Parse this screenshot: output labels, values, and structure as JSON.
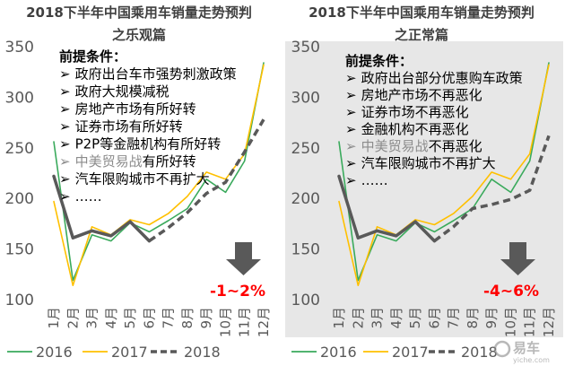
{
  "chart_data": [
    {
      "type": "line",
      "title": "2018下半年中国乘用车销量走势预判",
      "subtitle": "之乐观篇",
      "categories": [
        "1月",
        "2月",
        "3月",
        "4月",
        "5月",
        "6月",
        "7月",
        "8月",
        "9月",
        "10月",
        "11月",
        "12月"
      ],
      "ylim": [
        100,
        350
      ],
      "yticks": [
        100,
        150,
        200,
        250,
        300,
        350
      ],
      "grid": false,
      "legend": "bottom",
      "background": "#ffffff",
      "series": [
        {
          "name": "2016",
          "color": "#3aaa5c",
          "values": [
            256,
            119,
            164,
            158,
            176,
            167,
            178,
            190,
            219,
            206,
            237,
            334
          ]
        },
        {
          "name": "2017",
          "color": "#ffc000",
          "values": [
            197,
            114,
            172,
            164,
            179,
            174,
            185,
            202,
            226,
            219,
            244,
            332
          ]
        },
        {
          "name": "2018",
          "color": "#595959",
          "dashed_from": "6月",
          "values": [
            222,
            161,
            168,
            163,
            177,
            158,
            171,
            186,
            205,
            216,
            246,
            278
          ]
        }
      ],
      "annotation": {
        "heading": "前提条件：",
        "bullet": "➢",
        "muted_phrase": "中美贸易战",
        "items": [
          "政府出台车市强势刺激政策",
          "政府大规模减税",
          "房地产市场有所好转",
          "证券市场有所好转",
          "P2P等金融机构有所好转",
          "中美贸易战有所好转",
          "汽车限购城市不再扩大",
          "……"
        ]
      },
      "forecast_change": "-1~2%",
      "forecast_change_color": "#ff0000",
      "arrow_icon": "down-arrow-icon",
      "arrow_color": "#595959"
    },
    {
      "type": "line",
      "title": "2018下半年中国乘用车销量走势预判",
      "subtitle": "之正常篇",
      "categories": [
        "1月",
        "2月",
        "3月",
        "4月",
        "5月",
        "6月",
        "7月",
        "8月",
        "9月",
        "10月",
        "11月",
        "12月"
      ],
      "ylim": [
        100,
        350
      ],
      "yticks": [
        100,
        150,
        200,
        250,
        300,
        350
      ],
      "grid": false,
      "legend": "bottom",
      "background": "#e7e7e7",
      "series": [
        {
          "name": "2016",
          "color": "#3aaa5c",
          "values": [
            256,
            119,
            164,
            158,
            176,
            167,
            178,
            190,
            219,
            206,
            237,
            334
          ]
        },
        {
          "name": "2017",
          "color": "#ffc000",
          "values": [
            197,
            114,
            172,
            164,
            179,
            174,
            185,
            202,
            226,
            219,
            244,
            332
          ]
        },
        {
          "name": "2018",
          "color": "#595959",
          "dashed_from": "6月",
          "values": [
            222,
            161,
            168,
            163,
            177,
            158,
            172,
            190,
            194,
            199,
            208,
            262
          ]
        }
      ],
      "annotation": {
        "heading": "前提条件：",
        "bullet": "➢",
        "muted_phrase": "中美贸易战",
        "items": [
          "政府出台部分优惠购车政策",
          "房地产市场不再恶化",
          "证券市场不再恶化",
          "金融机构不再恶化",
          "中美贸易战不再恶化",
          "汽车限购城市不再扩大",
          "……"
        ]
      },
      "forecast_change": "-4~6%",
      "forecast_change_color": "#ff0000",
      "arrow_icon": "down-arrow-icon",
      "arrow_color": "#595959"
    }
  ],
  "watermark": {
    "brand": "易车",
    "site": "yiche.com",
    "icon": "yiche-logo-icon"
  }
}
